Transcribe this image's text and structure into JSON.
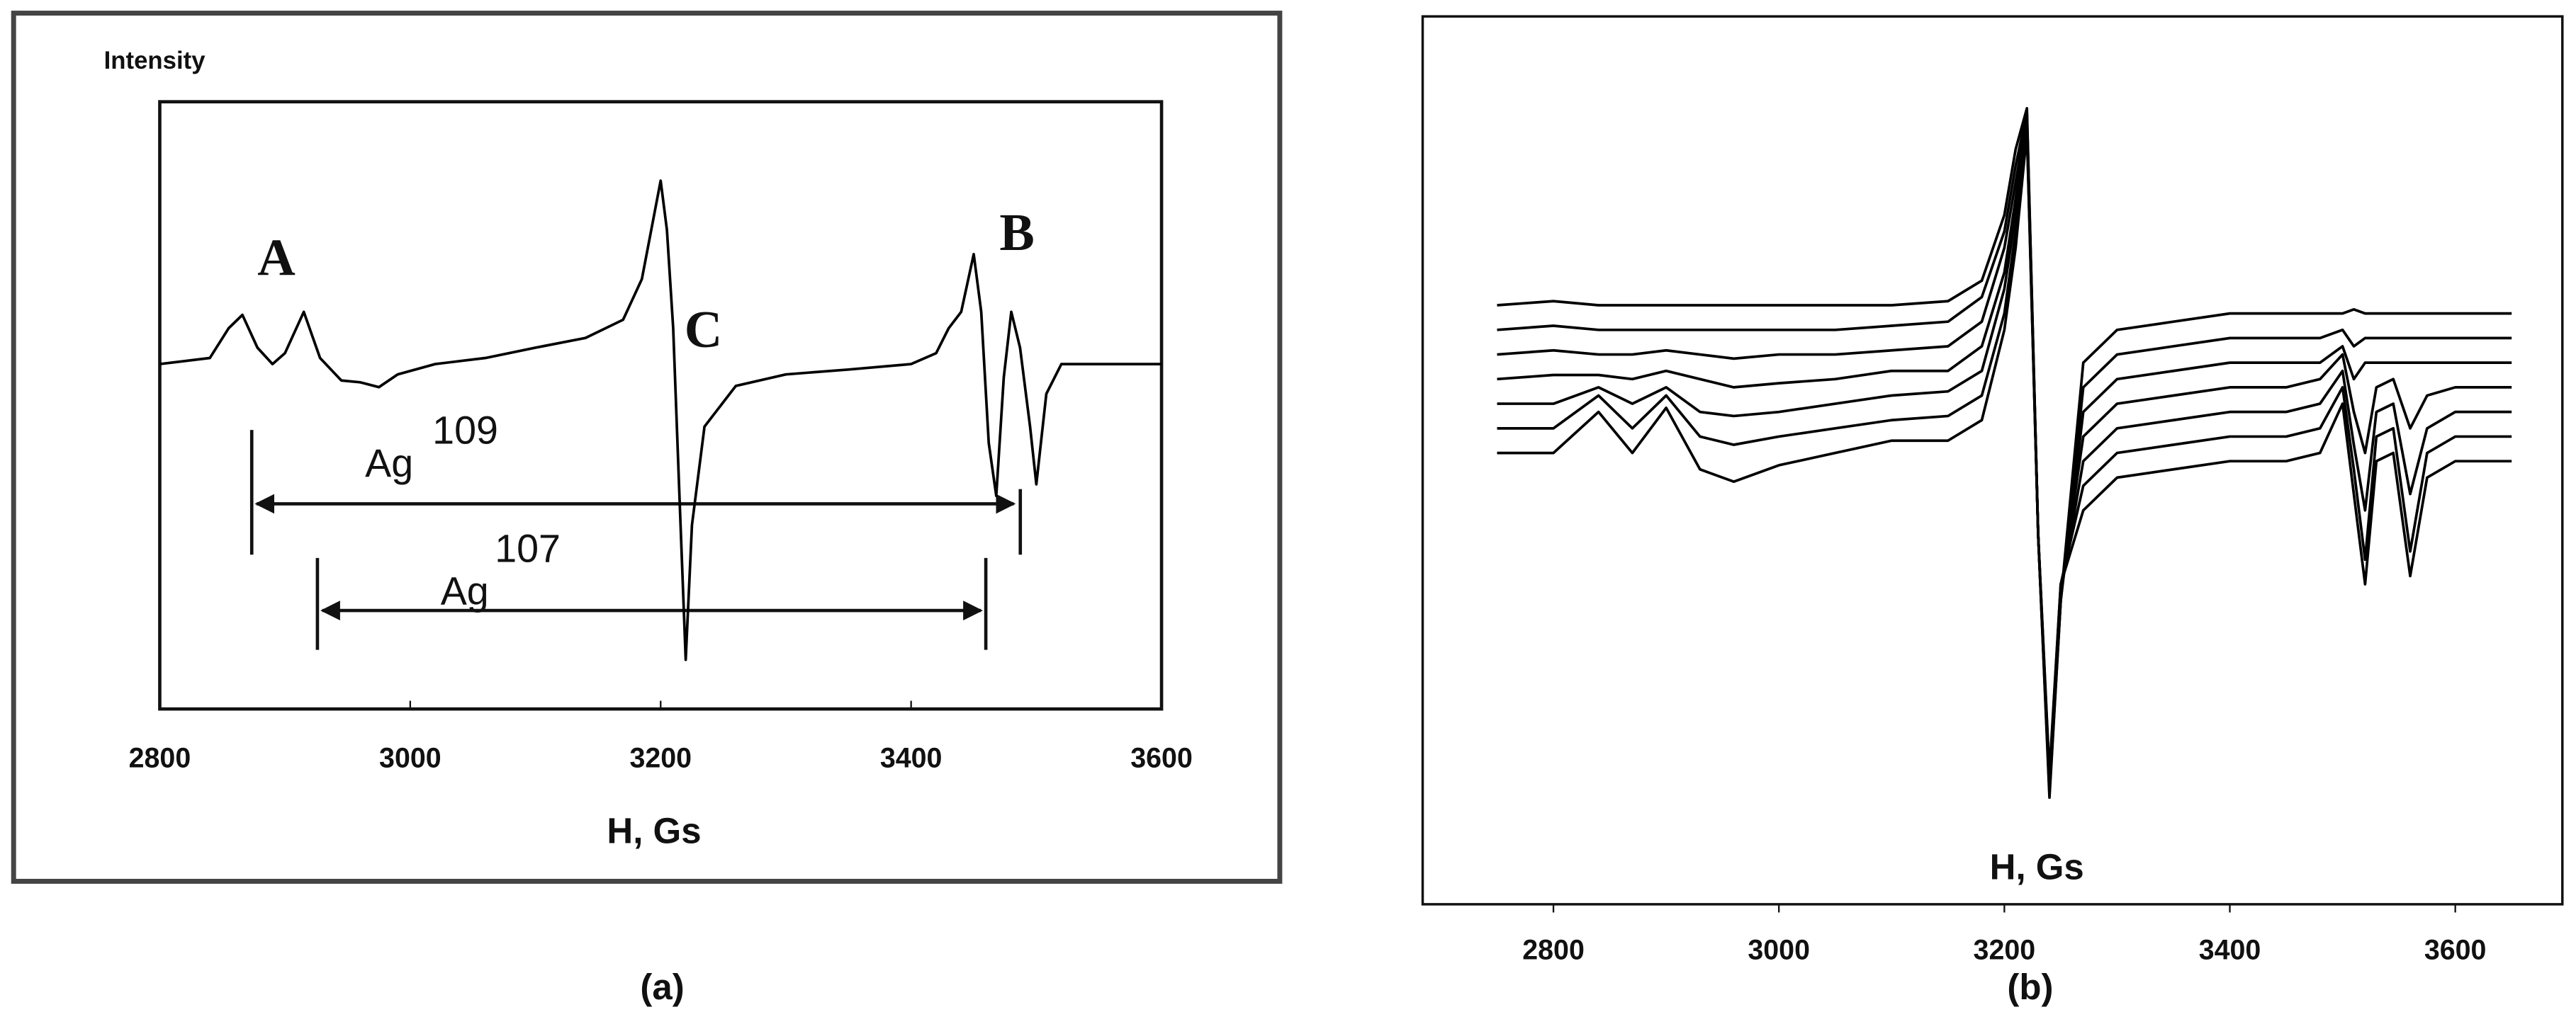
{
  "chart_data": [
    {
      "type": "line",
      "ylabel": "Intensity",
      "xlabel": "H, Gs",
      "caption": "(a)",
      "color": "#000000",
      "xlim": [
        2800,
        3600
      ],
      "xticks": [
        2800,
        3000,
        3200,
        3400,
        3600
      ],
      "ylim": [
        0,
        100
      ],
      "x": [
        2800,
        2840,
        2855,
        2866,
        2878,
        2890,
        2900,
        2915,
        2928,
        2945,
        2960,
        2975,
        2990,
        3020,
        3060,
        3100,
        3140,
        3170,
        3185,
        3195,
        3200,
        3205,
        3210,
        3215,
        3220,
        3225,
        3235,
        3260,
        3300,
        3350,
        3400,
        3420,
        3430,
        3440,
        3450,
        3456,
        3462,
        3468,
        3474,
        3480,
        3487,
        3495,
        3500,
        3508,
        3520,
        3600
      ],
      "values": [
        56.8,
        57.8,
        62.7,
        64.9,
        59.5,
        56.8,
        58.6,
        65.4,
        57.8,
        54.1,
        53.8,
        53.0,
        55.1,
        56.8,
        57.8,
        59.5,
        61.1,
        64.1,
        70.8,
        81.6,
        87.0,
        78.9,
        62.7,
        35.1,
        8.1,
        30.3,
        46.5,
        53.2,
        55.1,
        55.9,
        56.8,
        58.6,
        62.7,
        65.4,
        74.9,
        65.4,
        43.8,
        35.1,
        54.6,
        65.4,
        59.5,
        46.5,
        37.0,
        51.9,
        56.8,
        56.8
      ],
      "annotations": [
        "A",
        "B",
        "C",
        "Ag",
        "109",
        "Ag",
        "107"
      ]
    },
    {
      "type": "line",
      "xlabel": "H, Gs",
      "caption": "(b)",
      "xlim": [
        2684,
        3695
      ],
      "xticks": [
        2800,
        3000,
        3200,
        3400,
        3600
      ],
      "ylim": [
        0,
        100
      ],
      "x": [
        2750,
        2800,
        2840,
        2870,
        2900,
        2930,
        2960,
        3000,
        3050,
        3100,
        3150,
        3180,
        3200,
        3210,
        3220,
        3230,
        3240,
        3250,
        3270,
        3300,
        3350,
        3400,
        3450,
        3480,
        3500,
        3510,
        3520,
        3530,
        3545,
        3560,
        3575,
        3600,
        3650
      ],
      "series": [
        {
          "color": "#000000",
          "values": [
            73,
            73.5,
            73,
            73,
            73,
            73,
            73,
            73,
            73,
            73,
            73.5,
            76,
            84,
            92,
            97,
            45,
            13,
            37,
            66,
            70,
            71,
            72,
            72,
            72,
            72,
            72.5,
            72,
            72,
            72,
            72,
            72,
            72,
            72
          ]
        },
        {
          "color": "#000000",
          "values": [
            70,
            70.5,
            70,
            70,
            70,
            70,
            70,
            70,
            70,
            70.5,
            71,
            74,
            82,
            90,
            96.5,
            45,
            13.5,
            37,
            63,
            67,
            68,
            69,
            69,
            69,
            70,
            68,
            69,
            69,
            69,
            69,
            69,
            69,
            69
          ]
        },
        {
          "color": "#000000",
          "values": [
            67,
            67.5,
            67,
            67,
            67.5,
            67,
            66.5,
            67,
            67,
            67.5,
            68,
            71,
            80,
            88,
            96,
            45,
            14,
            37,
            60,
            64,
            65,
            66,
            66,
            66,
            68,
            64,
            66,
            66,
            66,
            66,
            66,
            66,
            66
          ]
        },
        {
          "color": "#000000",
          "values": [
            64,
            64.5,
            64.5,
            64,
            65,
            64,
            63,
            63.5,
            64,
            65,
            65,
            68,
            77,
            86,
            95.5,
            45,
            14.5,
            38,
            57,
            61,
            62,
            63,
            63,
            64,
            67,
            60,
            55,
            63,
            64,
            58,
            62,
            63,
            63
          ]
        },
        {
          "color": "#000000",
          "values": [
            61,
            61,
            63,
            61,
            63,
            60,
            59.5,
            60,
            61,
            62,
            62.5,
            65,
            75,
            84,
            95,
            45,
            15,
            38,
            54,
            58,
            59,
            60,
            60,
            61,
            65,
            56,
            48,
            60,
            61,
            50,
            58,
            60,
            60
          ]
        },
        {
          "color": "#000000",
          "values": [
            58,
            58,
            62,
            58,
            62,
            57,
            56,
            57,
            58,
            59,
            59.5,
            62,
            72,
            82,
            94.5,
            45,
            15.5,
            39,
            51,
            55,
            56,
            57,
            57,
            58,
            63,
            53,
            42,
            57,
            58,
            43,
            55,
            57,
            57
          ]
        },
        {
          "color": "#000000",
          "values": [
            55,
            55,
            60,
            55,
            60.5,
            53,
            51.5,
            53.5,
            55,
            56.5,
            56.5,
            59,
            70,
            80,
            94,
            45,
            16,
            39,
            48,
            52,
            53,
            54,
            54,
            55,
            61,
            50,
            39,
            54,
            55,
            40,
            52,
            54,
            54
          ]
        }
      ]
    }
  ]
}
